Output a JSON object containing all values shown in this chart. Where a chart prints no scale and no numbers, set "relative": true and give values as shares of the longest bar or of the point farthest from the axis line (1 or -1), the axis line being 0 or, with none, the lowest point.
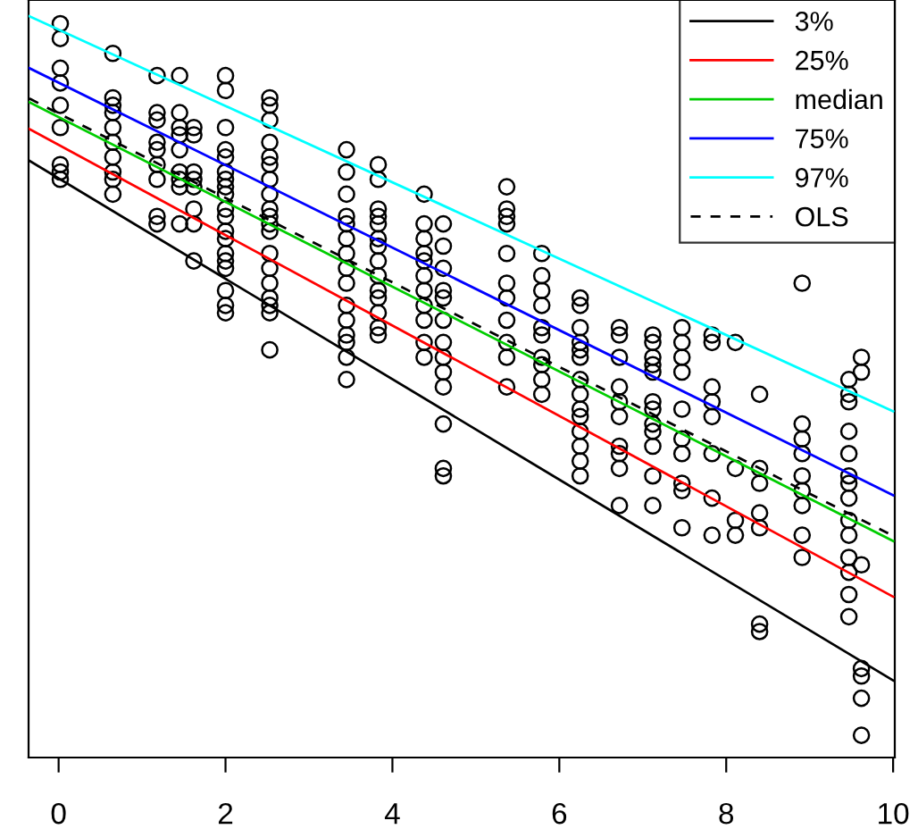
{
  "chart_data": {
    "type": "scatter",
    "relative": true,
    "xlim": [
      -0.36,
      10.02
    ],
    "xticks": [
      0,
      2,
      4,
      6,
      8,
      10
    ],
    "legend": "top right",
    "grid": false,
    "series": [
      {
        "marker": "circle",
        "color": "#000000",
        "x": [
          0.02,
          0.02,
          0.02,
          0.02,
          0.02,
          0.02,
          0.02,
          0.02,
          0.02,
          0.65,
          0.65,
          0.65,
          0.65,
          0.65,
          0.65,
          0.65,
          0.65,
          0.65,
          0.65,
          1.18,
          1.18,
          1.18,
          1.18,
          1.18,
          1.18,
          1.18,
          1.18,
          1.18,
          1.45,
          1.45,
          1.45,
          1.45,
          1.45,
          1.45,
          1.45,
          1.45,
          1.45,
          1.62,
          1.62,
          1.62,
          1.62,
          1.62,
          1.62,
          1.62,
          1.62,
          2.0,
          2.0,
          2.0,
          2.0,
          2.0,
          2.0,
          2.0,
          2.0,
          2.0,
          2.0,
          2.0,
          2.0,
          2.0,
          2.0,
          2.0,
          2.0,
          2.0,
          2.0,
          2.0,
          2.53,
          2.53,
          2.53,
          2.53,
          2.53,
          2.53,
          2.53,
          2.53,
          2.53,
          2.53,
          2.53,
          2.53,
          2.53,
          2.53,
          2.53,
          2.53,
          2.53,
          2.53,
          2.53,
          3.45,
          3.45,
          3.45,
          3.45,
          3.45,
          3.45,
          3.45,
          3.45,
          3.45,
          3.45,
          3.45,
          3.45,
          3.45,
          3.45,
          3.45,
          3.83,
          3.83,
          3.83,
          3.83,
          3.83,
          3.83,
          3.83,
          3.83,
          3.83,
          3.83,
          3.83,
          3.83,
          3.83,
          3.83,
          4.38,
          4.38,
          4.38,
          4.38,
          4.38,
          4.38,
          4.38,
          4.38,
          4.38,
          4.38,
          4.38,
          4.61,
          4.61,
          4.61,
          4.61,
          4.61,
          4.61,
          4.61,
          4.61,
          4.61,
          4.61,
          4.61,
          4.61,
          4.61,
          5.37,
          5.37,
          5.37,
          5.37,
          5.37,
          5.37,
          5.37,
          5.37,
          5.37,
          5.37,
          5.37,
          5.79,
          5.79,
          5.79,
          5.79,
          5.79,
          5.79,
          5.79,
          5.79,
          5.79,
          5.79,
          6.25,
          6.25,
          6.25,
          6.25,
          6.25,
          6.25,
          6.25,
          6.25,
          6.25,
          6.25,
          6.25,
          6.25,
          6.25,
          6.25,
          6.72,
          6.72,
          6.72,
          6.72,
          6.72,
          6.72,
          6.72,
          6.72,
          6.72,
          6.72,
          7.12,
          7.12,
          7.12,
          7.12,
          7.12,
          7.12,
          7.12,
          7.12,
          7.12,
          7.12,
          7.12,
          7.12,
          7.47,
          7.47,
          7.47,
          7.47,
          7.47,
          7.47,
          7.47,
          7.47,
          7.47,
          7.47,
          7.83,
          7.83,
          7.83,
          7.83,
          7.83,
          7.83,
          7.83,
          7.83,
          8.11,
          8.11,
          8.11,
          8.11,
          8.4,
          8.4,
          8.4,
          8.4,
          8.4,
          8.4,
          8.4,
          8.91,
          8.91,
          8.91,
          8.91,
          8.91,
          8.91,
          8.91,
          8.91,
          8.91,
          9.47,
          9.47,
          9.47,
          9.47,
          9.47,
          9.47,
          9.47,
          9.47,
          9.47,
          9.47,
          9.47,
          9.47,
          9.47,
          9.47,
          9.62,
          9.62,
          9.62,
          9.62,
          9.62,
          9.62,
          9.62
        ],
        "values": [
          0.99,
          0.97,
          0.93,
          0.91,
          0.88,
          0.85,
          0.8,
          0.79,
          0.78,
          0.95,
          0.89,
          0.88,
          0.87,
          0.85,
          0.83,
          0.81,
          0.79,
          0.78,
          0.76,
          0.92,
          0.87,
          0.86,
          0.83,
          0.82,
          0.8,
          0.78,
          0.73,
          0.72,
          0.92,
          0.87,
          0.85,
          0.84,
          0.82,
          0.79,
          0.78,
          0.77,
          0.72,
          0.85,
          0.84,
          0.79,
          0.78,
          0.77,
          0.74,
          0.72,
          0.67,
          0.92,
          0.9,
          0.85,
          0.82,
          0.81,
          0.79,
          0.78,
          0.77,
          0.76,
          0.74,
          0.73,
          0.71,
          0.7,
          0.68,
          0.67,
          0.66,
          0.63,
          0.61,
          0.6,
          0.89,
          0.88,
          0.86,
          0.83,
          0.81,
          0.8,
          0.78,
          0.76,
          0.74,
          0.73,
          0.72,
          0.71,
          0.68,
          0.66,
          0.64,
          0.62,
          0.61,
          0.6,
          0.55,
          0.82,
          0.79,
          0.76,
          0.73,
          0.72,
          0.7,
          0.68,
          0.66,
          0.64,
          0.61,
          0.59,
          0.57,
          0.56,
          0.54,
          0.51,
          0.8,
          0.78,
          0.74,
          0.73,
          0.72,
          0.7,
          0.69,
          0.67,
          0.65,
          0.63,
          0.62,
          0.6,
          0.58,
          0.57,
          0.76,
          0.72,
          0.7,
          0.68,
          0.67,
          0.65,
          0.63,
          0.61,
          0.59,
          0.56,
          0.54,
          0.72,
          0.69,
          0.66,
          0.63,
          0.62,
          0.59,
          0.56,
          0.54,
          0.52,
          0.5,
          0.45,
          0.39,
          0.38,
          0.77,
          0.74,
          0.73,
          0.72,
          0.68,
          0.64,
          0.62,
          0.59,
          0.56,
          0.54,
          0.5,
          0.68,
          0.65,
          0.63,
          0.61,
          0.58,
          0.57,
          0.54,
          0.53,
          0.51,
          0.49,
          0.62,
          0.61,
          0.58,
          0.56,
          0.55,
          0.54,
          0.51,
          0.49,
          0.47,
          0.46,
          0.44,
          0.42,
          0.4,
          0.38,
          0.58,
          0.57,
          0.54,
          0.5,
          0.48,
          0.46,
          0.42,
          0.41,
          0.39,
          0.34,
          0.57,
          0.56,
          0.54,
          0.53,
          0.52,
          0.48,
          0.47,
          0.45,
          0.44,
          0.42,
          0.38,
          0.34,
          0.58,
          0.56,
          0.54,
          0.52,
          0.47,
          0.43,
          0.41,
          0.37,
          0.36,
          0.31,
          0.57,
          0.56,
          0.5,
          0.48,
          0.46,
          0.41,
          0.35,
          0.3,
          0.56,
          0.39,
          0.32,
          0.3,
          0.49,
          0.39,
          0.37,
          0.33,
          0.31,
          0.18,
          0.17,
          0.64,
          0.45,
          0.43,
          0.41,
          0.38,
          0.36,
          0.34,
          0.3,
          0.27,
          0.51,
          0.49,
          0.48,
          0.44,
          0.41,
          0.38,
          0.37,
          0.35,
          0.32,
          0.3,
          0.27,
          0.25,
          0.22,
          0.19,
          0.54,
          0.52,
          0.26,
          0.12,
          0.11,
          0.08,
          0.03
        ]
      },
      {
        "type": "line",
        "name": "3%",
        "color": "#000000",
        "line_style": "solid",
        "x": [
          -0.35,
          10.0
        ],
        "values": [
          0.805,
          0.104
        ]
      },
      {
        "type": "line",
        "name": "25%",
        "color": "#ff0000",
        "line_style": "solid",
        "x": [
          -0.35,
          10.0
        ],
        "values": [
          0.848,
          0.217
        ]
      },
      {
        "type": "line",
        "name": "median",
        "color": "#00cd00",
        "line_style": "solid",
        "x": [
          -0.35,
          10.0
        ],
        "values": [
          0.884,
          0.292
        ]
      },
      {
        "type": "line",
        "name": "75%",
        "color": "#0000ff",
        "line_style": "solid",
        "x": [
          -0.35,
          10.0
        ],
        "values": [
          0.93,
          0.354
        ]
      },
      {
        "type": "line",
        "name": "97%",
        "color": "#00ffff",
        "line_style": "solid",
        "x": [
          -0.35,
          10.0
        ],
        "values": [
          1.0,
          0.467
        ]
      },
      {
        "type": "line",
        "name": "OLS",
        "color": "#000000",
        "line_style": "dashed",
        "x": [
          -0.35,
          10.0
        ],
        "values": [
          0.889,
          0.299
        ]
      }
    ]
  }
}
